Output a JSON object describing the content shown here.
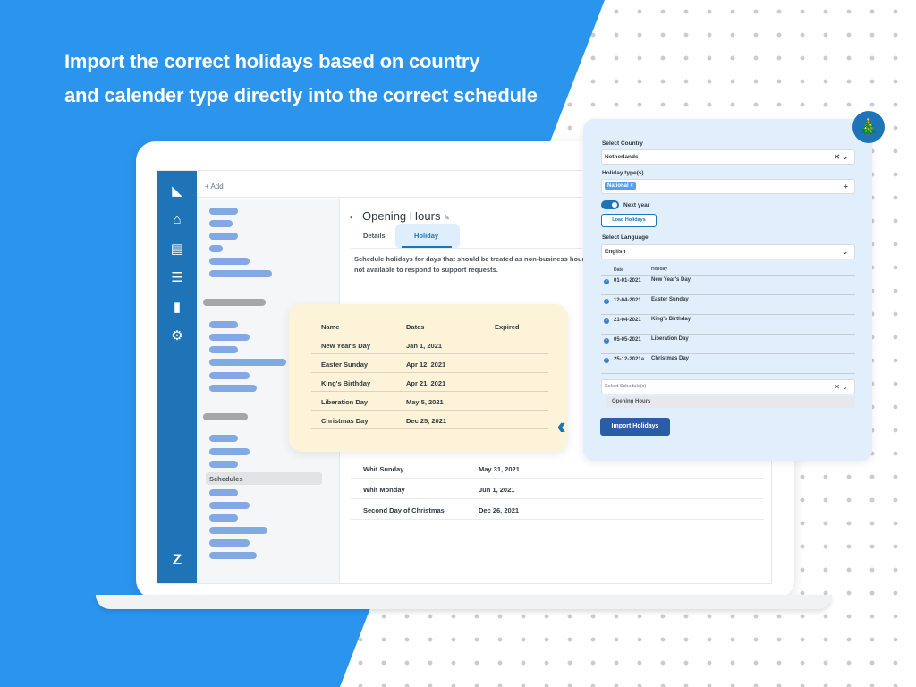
{
  "headline": [
    "Import the correct holidays based on country",
    "and calender type directly into the correct schedule"
  ],
  "colors": {
    "background_blue": "#2b95ee",
    "nav_blue": "#1f73b7",
    "card_yellow": "#fdf3d9",
    "panel_blue": "#e1eefc"
  },
  "app": {
    "topbar_add": "+ Add",
    "nav_icons": [
      "zendesk-logo-icon",
      "home-icon",
      "inbox-icon",
      "users-icon",
      "reports-icon",
      "settings-icon"
    ],
    "sidebar_active": "Schedules",
    "page_title": "Opening Hours",
    "tabs": [
      "Details",
      "Holiday"
    ],
    "active_tab": "Holiday",
    "description": [
      "Schedule holidays for days that should be treated as non-business hours. The",
      "not available to respond to support requests."
    ],
    "rows": [
      {
        "name": "Whit Sunday",
        "date": "May 31, 2021"
      },
      {
        "name": "Whit Monday",
        "date": "Jun 1, 2021"
      },
      {
        "name": "Second Day of Christmas",
        "date": "Dec 26, 2021"
      }
    ]
  },
  "card": {
    "headers": [
      "Name",
      "Dates",
      "Expired"
    ],
    "rows": [
      {
        "name": "New Year's Day",
        "date": "Jan 1, 2021"
      },
      {
        "name": "Easter Sunday",
        "date": "Apr 12, 2021"
      },
      {
        "name": "King's Birthday",
        "date": "Apr 21, 2021"
      },
      {
        "name": "Liberation Day",
        "date": "May 5, 2021"
      },
      {
        "name": "Christmas Day",
        "date": "Dec 25, 2021"
      }
    ]
  },
  "panel": {
    "country_label": "Select Country",
    "country_value": "Netherlands",
    "types_label": "Holiday type(s)",
    "type_chip": "National ×",
    "next_year_label": "Next year",
    "next_year_on": true,
    "load_button": "Load Holidays",
    "language_label": "Select Language",
    "language_value": "English",
    "table_headers": [
      "Date",
      "Holiday"
    ],
    "rows": [
      {
        "date": "01-01-2021",
        "holiday": "New Year's Day"
      },
      {
        "date": "12-04-2021",
        "holiday": "Easter Sunday"
      },
      {
        "date": "21-04-2021",
        "holiday": "King's Birthday"
      },
      {
        "date": "05-05-2021",
        "holiday": "Liberation Day"
      },
      {
        "date": "25-12-2021a",
        "holiday": "Christmas Day"
      }
    ],
    "schedule_placeholder": "Select Schedule(s)",
    "schedule_option": "Opening Hours",
    "import_button": "Import Holidays"
  }
}
